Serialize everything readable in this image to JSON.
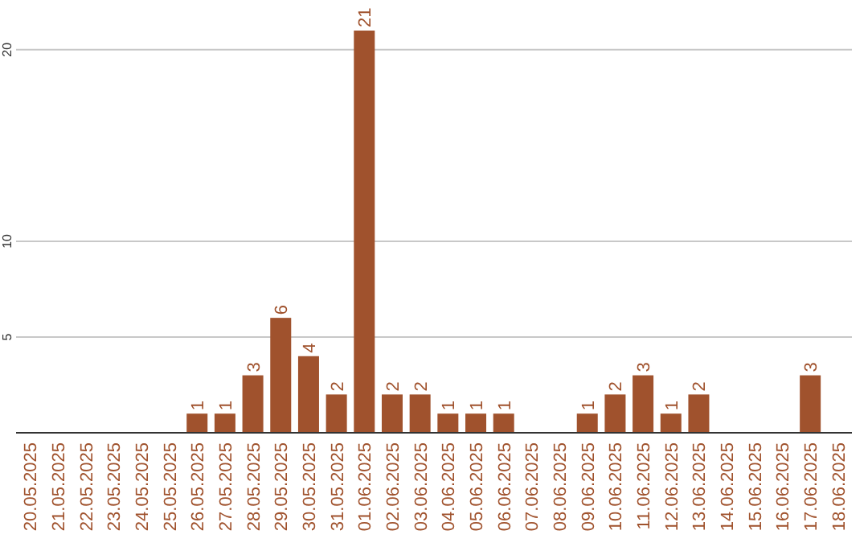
{
  "chart_data": {
    "type": "bar",
    "categories": [
      "20.05.2025",
      "21.05.2025",
      "22.05.2025",
      "23.05.2025",
      "24.05.2025",
      "25.05.2025",
      "26.05.2025",
      "27.05.2025",
      "28.05.2025",
      "29.05.2025",
      "30.05.2025",
      "31.05.2025",
      "01.06.2025",
      "02.06.2025",
      "03.06.2025",
      "04.06.2025",
      "05.06.2025",
      "06.06.2025",
      "07.06.2025",
      "08.06.2025",
      "09.06.2025",
      "10.06.2025",
      "11.06.2025",
      "12.06.2025",
      "13.06.2025",
      "14.06.2025",
      "15.06.2025",
      "16.06.2025",
      "17.06.2025",
      "18.06.2025"
    ],
    "values": [
      0,
      0,
      0,
      0,
      0,
      0,
      1,
      1,
      3,
      6,
      4,
      2,
      21,
      2,
      2,
      1,
      1,
      1,
      0,
      0,
      1,
      2,
      3,
      1,
      2,
      0,
      0,
      0,
      3,
      0
    ],
    "value_labels": [
      null,
      null,
      null,
      null,
      null,
      null,
      "1",
      "1",
      "3",
      "6",
      "4",
      "2",
      "21",
      "2",
      "2",
      "1",
      "1",
      "1",
      null,
      null,
      "1",
      "2",
      "3",
      "1",
      "2",
      null,
      null,
      null,
      "3",
      null
    ],
    "color": "#a0522d",
    "ylim": [
      0,
      21
    ],
    "yticks": [
      5,
      10,
      20
    ],
    "grid": "y"
  }
}
